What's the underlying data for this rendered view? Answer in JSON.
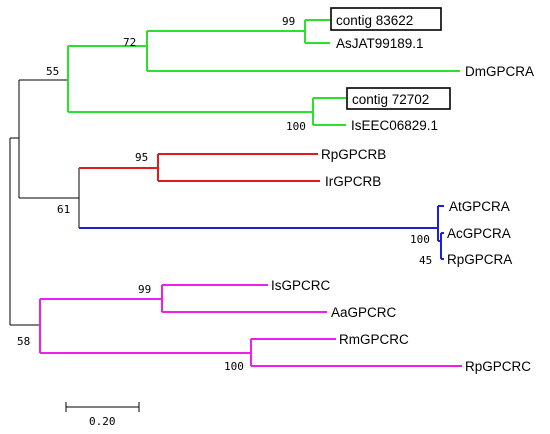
{
  "colors": {
    "clade_a": "#2ee02e",
    "clade_b": "#e01b1b",
    "clade_c": "#1f1fd6",
    "clade_d": "#ee1fee",
    "root": "#000000"
  },
  "leaves": {
    "contig83622": "contig 83622",
    "asjat": "AsJAT99189.1",
    "dmgpcra": "DmGPCRA",
    "contig72702": "contig 72702",
    "iseec": "IsEEC06829.1",
    "rpgpcrb": "RpGPCRB",
    "irgpcrb": "IrGPCRB",
    "atgpcra": "AtGPCRA",
    "acgpcra": "AcGPCRA",
    "rpgpcra": "RpGPCRA",
    "isgpcrc": "IsGPCRC",
    "aagpcrc": "AaGPCRC",
    "rmgpcrc": "RmGPCRC",
    "rpgpcrc": "RpGPCRC"
  },
  "support": {
    "n99_top": "99",
    "n72": "72",
    "n55": "55",
    "n100_iseec": "100",
    "n95": "95",
    "n61": "61",
    "n100_blue": "100",
    "n45": "45",
    "n99_bottom": "99",
    "n58": "58",
    "n100_pink": "100"
  },
  "scale": {
    "value": "0.20"
  }
}
